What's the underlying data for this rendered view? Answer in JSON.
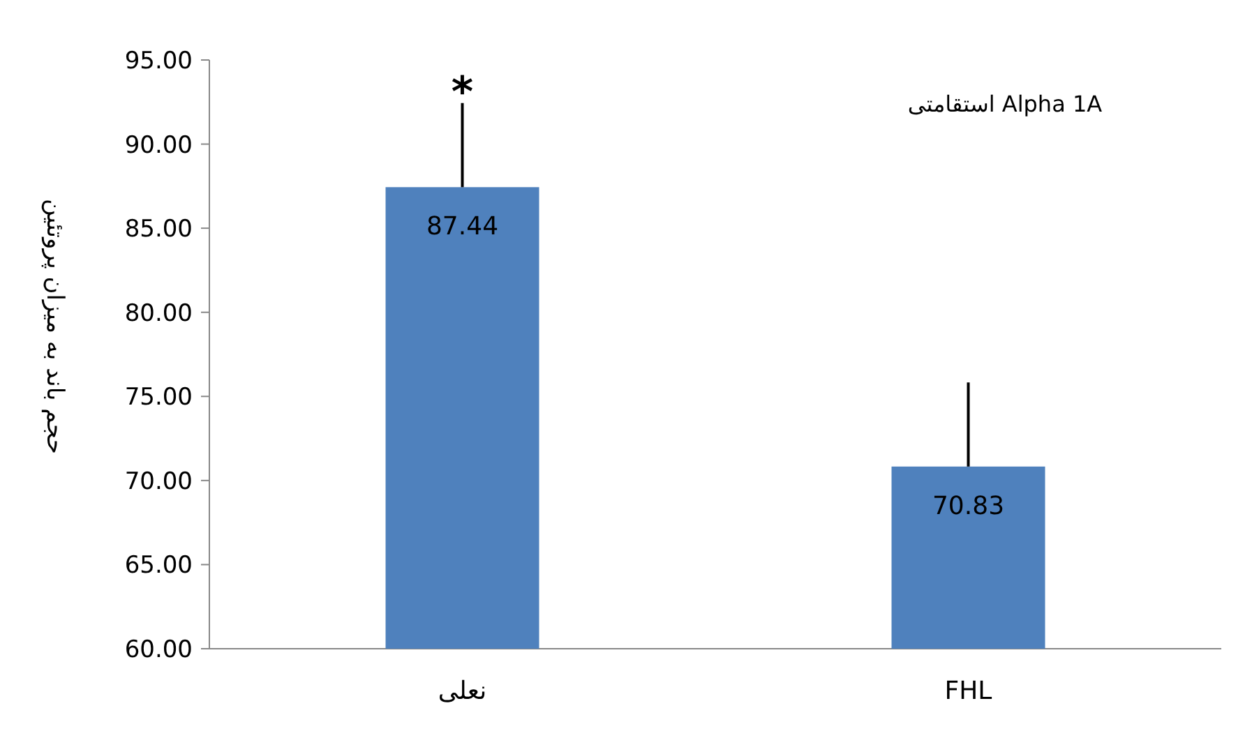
{
  "chart_data": {
    "type": "bar",
    "title": "استقامتی Alpha 1A",
    "ylabel": "حجم باند به میزان پروتئین",
    "categories": [
      "نعلی",
      "FHL"
    ],
    "values": [
      87.44,
      70.83
    ],
    "errors": [
      5.0,
      5.0
    ],
    "color": "#4f81bd",
    "ylim": [
      60,
      95
    ],
    "yticks": [
      {
        "value": 60,
        "label": "60.00"
      },
      {
        "value": 65,
        "label": "65.00"
      },
      {
        "value": 70,
        "label": "70.00"
      },
      {
        "value": 75,
        "label": "75.00"
      },
      {
        "value": 80,
        "label": "80.00"
      },
      {
        "value": 85,
        "label": "85.00"
      },
      {
        "value": 90,
        "label": "90.00"
      },
      {
        "value": 95,
        "label": "95.00"
      }
    ],
    "data_labels": true,
    "grid": false,
    "annotations": [
      {
        "text": "*",
        "x": "نعلی",
        "y": 92.44
      }
    ]
  }
}
